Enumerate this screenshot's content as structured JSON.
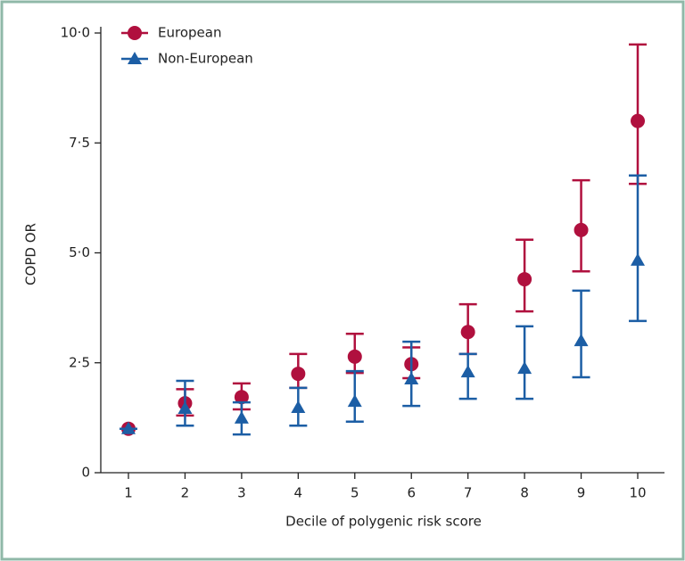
{
  "chart_data": {
    "type": "errorbar",
    "x_label": "Decile of polygenic risk score",
    "y_label": "COPD OR",
    "categories": [
      "1",
      "2",
      "3",
      "4",
      "5",
      "6",
      "7",
      "8",
      "9",
      "10"
    ],
    "ylim": [
      0,
      10
    ],
    "yticks": [
      0,
      {
        "value": 2.5,
        "label": "2·5"
      },
      {
        "value": 5,
        "label": "5·0"
      },
      {
        "value": 7.5,
        "label": "7·5"
      },
      {
        "value": 10,
        "label": "10·0"
      }
    ],
    "legend": "top-left",
    "series": [
      {
        "name": "European",
        "color": "#b0103e",
        "marker": "circle",
        "values": [
          1.0,
          1.58,
          1.72,
          2.25,
          2.64,
          2.47,
          3.2,
          4.4,
          5.52,
          8.0
        ],
        "lower": [
          1.0,
          1.3,
          1.44,
          1.93,
          2.27,
          2.15,
          2.7,
          3.67,
          4.58,
          6.57
        ],
        "upper": [
          1.0,
          1.9,
          2.03,
          2.7,
          3.16,
          2.85,
          3.83,
          5.3,
          6.65,
          9.74
        ]
      },
      {
        "name": "Non-European",
        "color": "#1c5ea5",
        "marker": "triangle",
        "values": [
          1.0,
          1.46,
          1.24,
          1.48,
          1.62,
          2.13,
          2.29,
          2.37,
          3.0,
          4.83
        ],
        "lower": [
          1.0,
          1.07,
          0.87,
          1.07,
          1.16,
          1.52,
          1.68,
          1.68,
          2.17,
          3.45
        ],
        "upper": [
          1.0,
          2.09,
          1.6,
          1.93,
          2.31,
          2.98,
          2.7,
          3.33,
          4.14,
          6.76
        ]
      }
    ]
  }
}
